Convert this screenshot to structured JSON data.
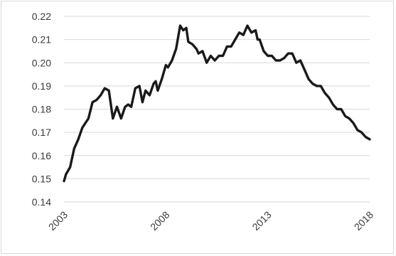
{
  "chart_data": {
    "type": "line",
    "title": "",
    "xlabel": "",
    "ylabel": "",
    "xlim": [
      2003,
      2018
    ],
    "ylim": [
      0.14,
      0.22
    ],
    "grid": "horizontal",
    "legend": "none",
    "x_ticks": [
      "2003",
      "2008",
      "2013",
      "2018"
    ],
    "y_ticks": [
      "0.22",
      "0.21",
      "0.20",
      "0.19",
      "0.18",
      "0.17",
      "0.16",
      "0.15",
      "0.14"
    ],
    "line_color": "#1a1a1a",
    "series": [
      {
        "x": [
          2003.0,
          2003.1,
          2003.3,
          2003.5,
          2003.7,
          2003.9,
          2004.2,
          2004.4,
          2004.6,
          2004.8,
          2005.0,
          2005.2,
          2005.4,
          2005.6,
          2005.8,
          2006.0,
          2006.15,
          2006.3,
          2006.5,
          2006.7,
          2006.85,
          2007.0,
          2007.2,
          2007.4,
          2007.5,
          2007.6,
          2007.8,
          2008.0,
          2008.1,
          2008.3,
          2008.5,
          2008.7,
          2008.85,
          2009.0,
          2009.1,
          2009.3,
          2009.5,
          2009.6,
          2009.8,
          2010.0,
          2010.2,
          2010.4,
          2010.6,
          2010.8,
          2011.0,
          2011.2,
          2011.4,
          2011.6,
          2011.8,
          2012.0,
          2012.2,
          2012.4,
          2012.5,
          2012.6,
          2012.8,
          2013.0,
          2013.2,
          2013.4,
          2013.6,
          2013.8,
          2014.0,
          2014.2,
          2014.4,
          2014.6,
          2014.8,
          2015.0,
          2015.2,
          2015.4,
          2015.6,
          2015.8,
          2016.0,
          2016.2,
          2016.4,
          2016.6,
          2016.8,
          2017.0,
          2017.2,
          2017.4,
          2017.6,
          2017.8,
          2018.0
        ],
        "y": [
          0.149,
          0.152,
          0.155,
          0.163,
          0.167,
          0.172,
          0.176,
          0.183,
          0.184,
          0.186,
          0.189,
          0.188,
          0.176,
          0.181,
          0.176,
          0.181,
          0.182,
          0.181,
          0.189,
          0.19,
          0.183,
          0.188,
          0.186,
          0.191,
          0.192,
          0.188,
          0.193,
          0.199,
          0.198,
          0.201,
          0.206,
          0.216,
          0.214,
          0.215,
          0.209,
          0.208,
          0.206,
          0.204,
          0.205,
          0.2,
          0.203,
          0.201,
          0.203,
          0.203,
          0.207,
          0.207,
          0.21,
          0.213,
          0.212,
          0.216,
          0.213,
          0.214,
          0.21,
          0.21,
          0.205,
          0.203,
          0.203,
          0.201,
          0.201,
          0.202,
          0.204,
          0.204,
          0.2,
          0.201,
          0.197,
          0.193,
          0.191,
          0.19,
          0.19,
          0.187,
          0.185,
          0.182,
          0.18,
          0.18,
          0.177,
          0.176,
          0.174,
          0.171,
          0.17,
          0.168,
          0.167
        ]
      }
    ]
  }
}
